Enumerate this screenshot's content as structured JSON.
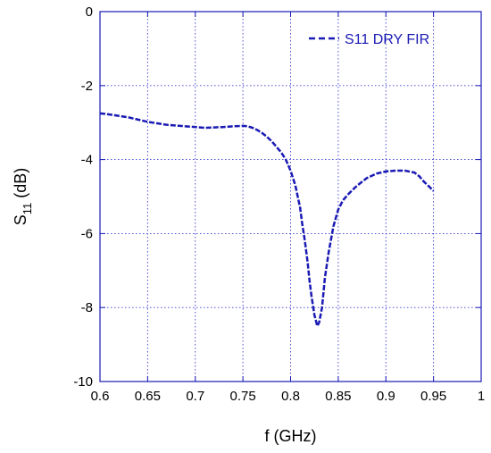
{
  "chart_data": {
    "type": "line",
    "title": "",
    "xlabel": "f (GHz)",
    "ylabel": {
      "base": "S",
      "subscript": "11",
      "suffix": " (dB)"
    },
    "xlim": [
      0.6,
      1
    ],
    "ylim": [
      -10,
      0
    ],
    "xticks": [
      "0.6",
      "0.65",
      "0.7",
      "0.75",
      "0.8",
      "0.85",
      "0.9",
      "0.95",
      "1"
    ],
    "yticks": [
      "0",
      "-2",
      "-4",
      "-6",
      "-8",
      "-10"
    ],
    "grid": true,
    "legend_position": "top-right",
    "series": [
      {
        "name": "S11 DRY FIR",
        "color": "#1a1ab4",
        "dash": "dashed",
        "x": [
          0.6,
          0.61,
          0.62,
          0.63,
          0.64,
          0.65,
          0.66,
          0.67,
          0.68,
          0.69,
          0.7,
          0.71,
          0.72,
          0.73,
          0.74,
          0.75,
          0.755,
          0.76,
          0.765,
          0.77,
          0.775,
          0.78,
          0.785,
          0.79,
          0.795,
          0.8,
          0.805,
          0.81,
          0.812,
          0.815,
          0.818,
          0.82,
          0.822,
          0.825,
          0.828,
          0.83,
          0.833,
          0.836,
          0.84,
          0.845,
          0.85,
          0.855,
          0.86,
          0.865,
          0.87,
          0.88,
          0.89,
          0.9,
          0.91,
          0.92,
          0.93,
          0.935,
          0.94,
          0.945,
          0.95
        ],
        "y": [
          -2.75,
          -2.78,
          -2.82,
          -2.86,
          -2.92,
          -2.98,
          -3.02,
          -3.06,
          -3.08,
          -3.1,
          -3.12,
          -3.14,
          -3.13,
          -3.12,
          -3.1,
          -3.09,
          -3.1,
          -3.14,
          -3.2,
          -3.28,
          -3.38,
          -3.5,
          -3.65,
          -3.8,
          -4.0,
          -4.3,
          -4.7,
          -5.3,
          -5.7,
          -6.2,
          -6.8,
          -7.3,
          -7.7,
          -8.2,
          -8.5,
          -8.4,
          -8.0,
          -7.2,
          -6.5,
          -5.8,
          -5.35,
          -5.1,
          -4.95,
          -4.82,
          -4.7,
          -4.5,
          -4.38,
          -4.32,
          -4.3,
          -4.3,
          -4.35,
          -4.45,
          -4.6,
          -4.72,
          -4.85
        ]
      }
    ]
  }
}
